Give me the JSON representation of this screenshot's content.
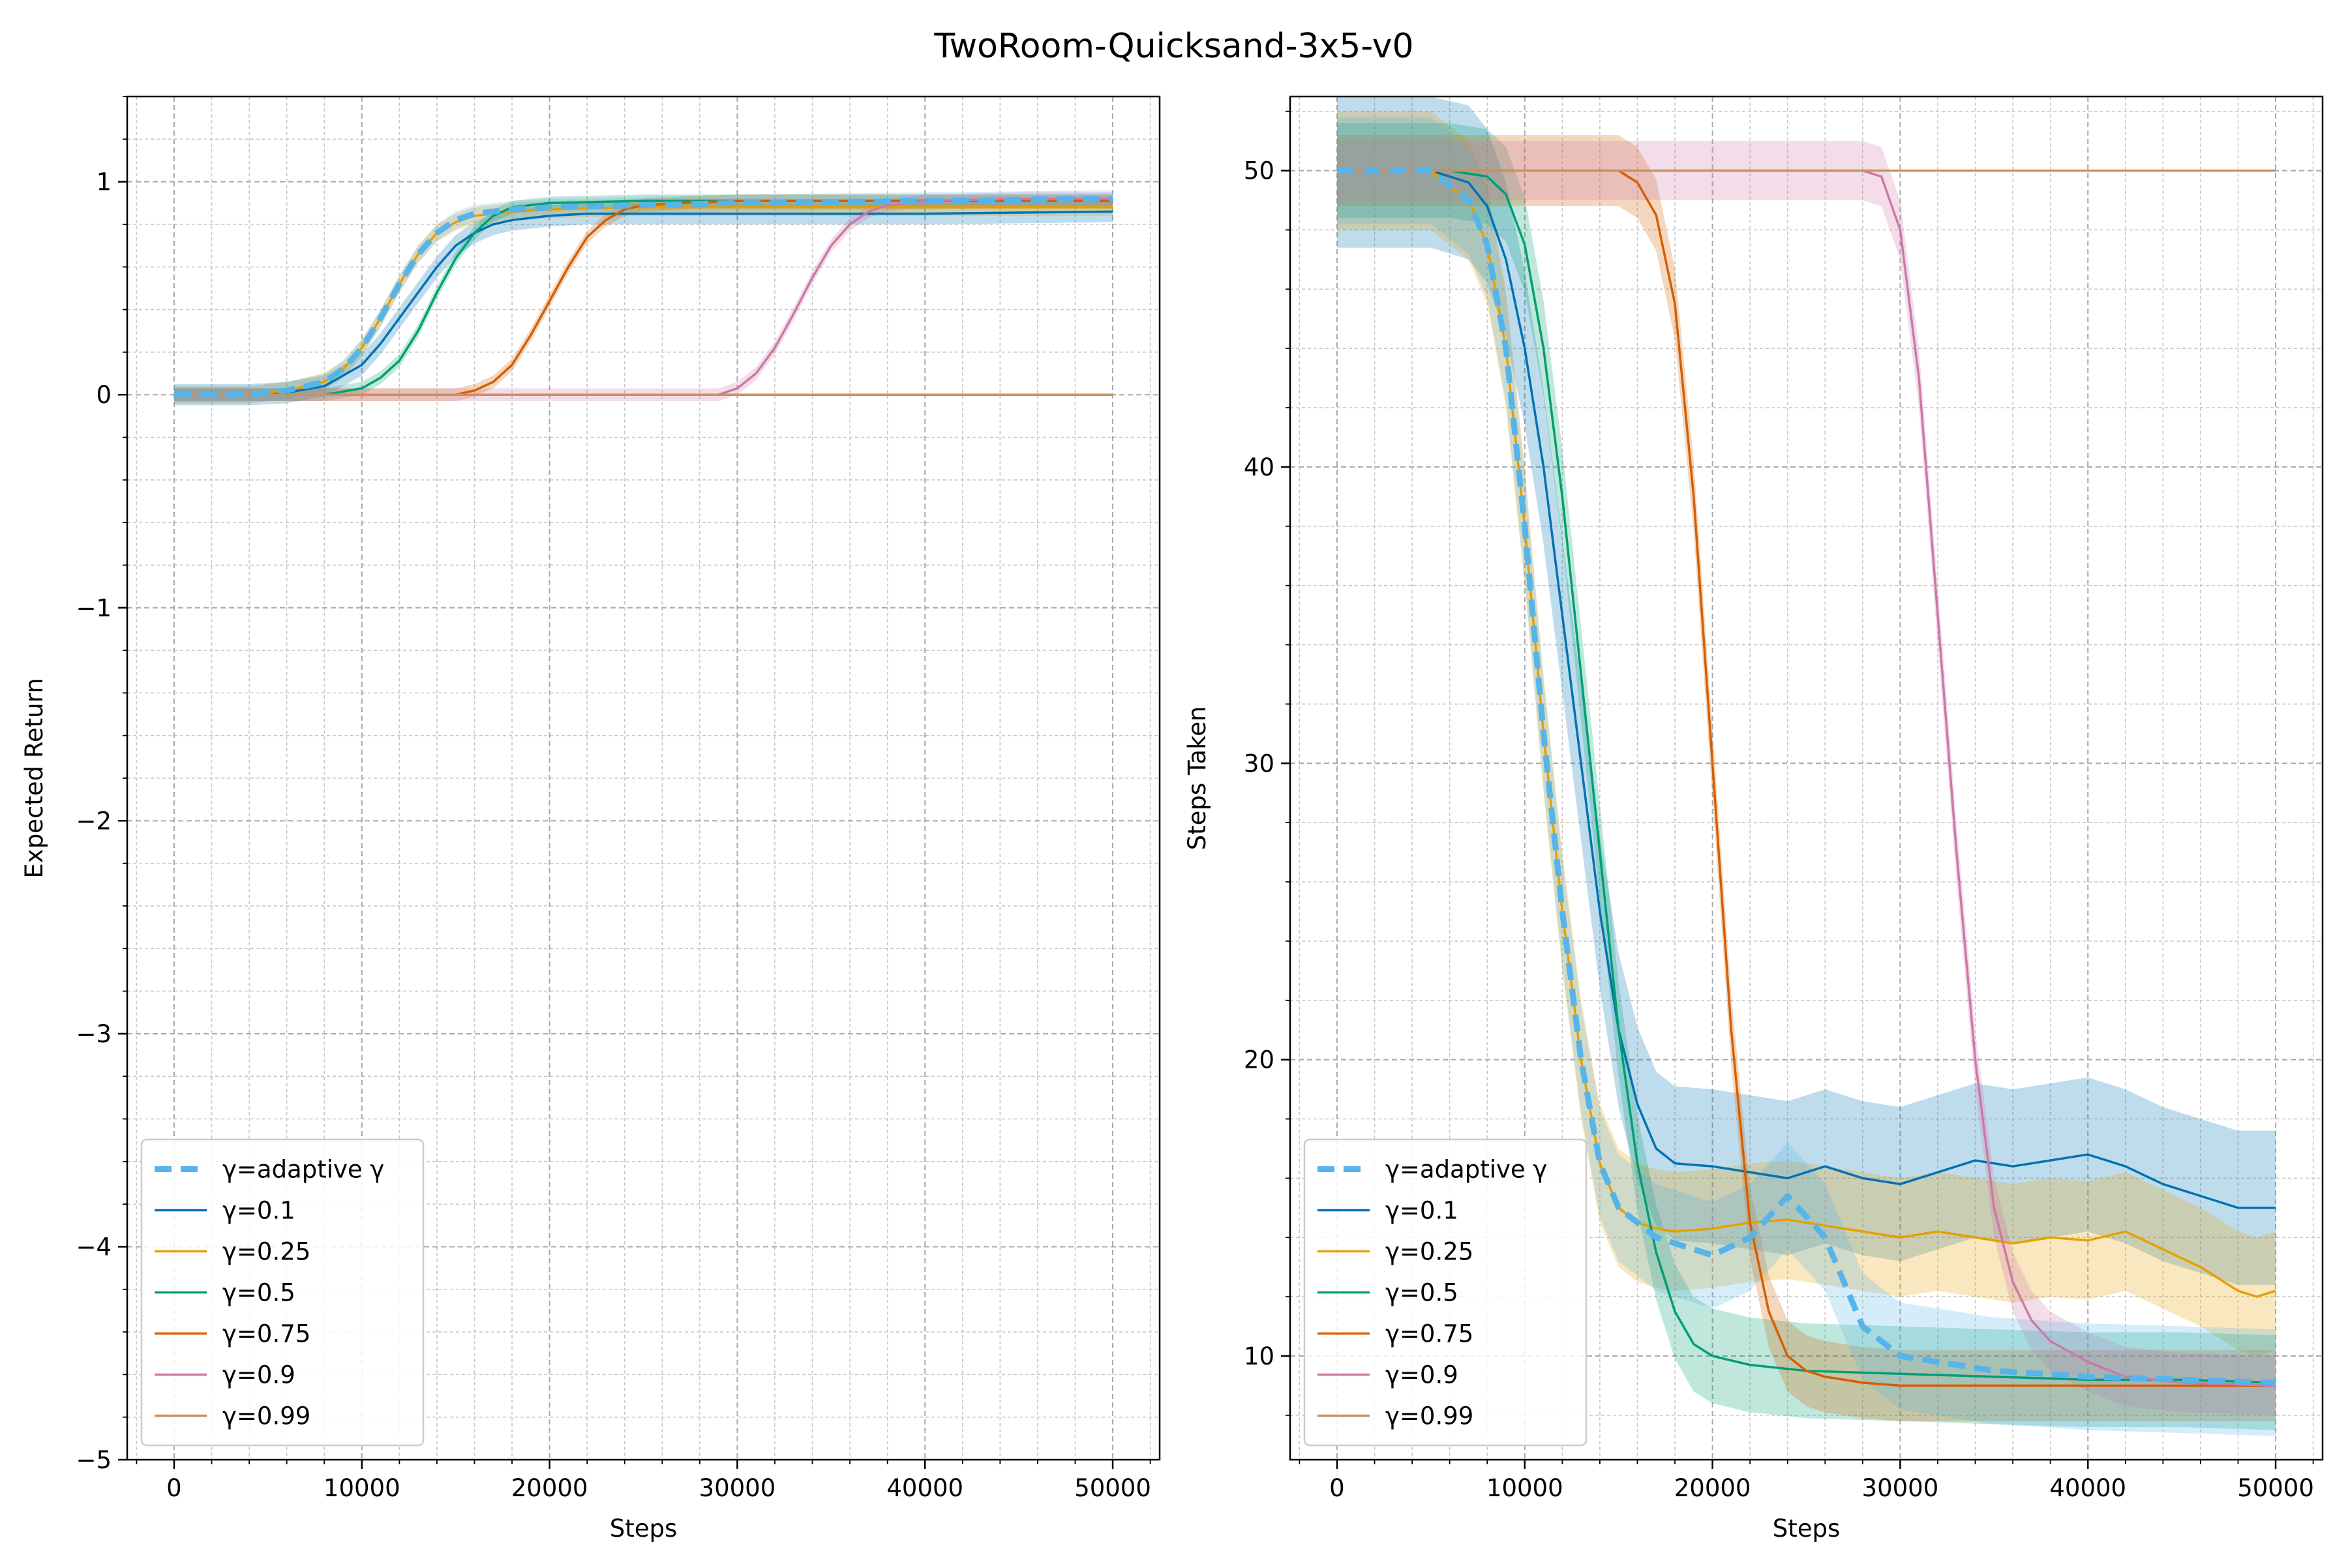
{
  "figure": {
    "title": "TwoRoom-Quicksand-3x5-v0"
  },
  "colors": {
    "adaptive": "#56B4E9",
    "g01": "#0072B2",
    "g025": "#E69F00",
    "g05": "#009E73",
    "g075": "#D55E00",
    "g09": "#CC79A7",
    "g099": "#CA9161"
  },
  "chart_data": [
    {
      "type": "line",
      "xlabel": "Steps",
      "ylabel": "Expected Return",
      "xlim": [
        -2500,
        52500
      ],
      "ylim": [
        -5,
        1.4
      ],
      "xticks": [
        0,
        10000,
        20000,
        30000,
        40000,
        50000
      ],
      "yticks": [
        -5,
        -4,
        -3,
        -2,
        -1,
        0,
        1
      ],
      "grid": true,
      "legend_position": "lower-left",
      "series": [
        {
          "name": "γ=adaptive γ",
          "key": "adaptive",
          "dashed": true,
          "x": [
            0,
            4000,
            6000,
            8000,
            9000,
            10000,
            11000,
            12000,
            13000,
            14000,
            15000,
            16000,
            18000,
            20000,
            25000,
            30000,
            40000,
            50000
          ],
          "y": [
            0,
            0,
            0.02,
            0.06,
            0.12,
            0.22,
            0.36,
            0.52,
            0.66,
            0.76,
            0.82,
            0.85,
            0.87,
            0.88,
            0.89,
            0.9,
            0.91,
            0.92
          ],
          "band": 0.04
        },
        {
          "name": "γ=0.1",
          "key": "g01",
          "dashed": false,
          "x": [
            0,
            4000,
            6000,
            8000,
            10000,
            11000,
            12000,
            13000,
            14000,
            15000,
            16000,
            17000,
            18000,
            20000,
            22000,
            25000,
            30000,
            40000,
            50000
          ],
          "y": [
            0,
            0,
            0.01,
            0.04,
            0.14,
            0.24,
            0.36,
            0.48,
            0.6,
            0.7,
            0.76,
            0.8,
            0.82,
            0.84,
            0.85,
            0.85,
            0.85,
            0.85,
            0.86
          ],
          "band": 0.05
        },
        {
          "name": "γ=0.25",
          "key": "g025",
          "dashed": false,
          "x": [
            0,
            4000,
            6000,
            8000,
            9000,
            10000,
            11000,
            12000,
            13000,
            14000,
            15000,
            16000,
            18000,
            20000,
            25000,
            30000,
            40000,
            50000
          ],
          "y": [
            0,
            0,
            0.02,
            0.06,
            0.12,
            0.22,
            0.36,
            0.52,
            0.66,
            0.76,
            0.81,
            0.84,
            0.86,
            0.87,
            0.88,
            0.88,
            0.88,
            0.88
          ],
          "band": 0.04
        },
        {
          "name": "γ=0.5",
          "key": "g05",
          "dashed": false,
          "x": [
            0,
            8000,
            10000,
            11000,
            12000,
            13000,
            14000,
            15000,
            16000,
            17000,
            18000,
            20000,
            25000,
            30000,
            40000,
            50000
          ],
          "y": [
            0,
            0,
            0.03,
            0.08,
            0.16,
            0.3,
            0.48,
            0.64,
            0.76,
            0.84,
            0.88,
            0.9,
            0.91,
            0.91,
            0.91,
            0.91
          ],
          "band": 0.03
        },
        {
          "name": "γ=0.75",
          "key": "g075",
          "dashed": false,
          "x": [
            0,
            15000,
            16000,
            17000,
            18000,
            19000,
            20000,
            21000,
            22000,
            23000,
            24000,
            25000,
            27000,
            30000,
            40000,
            50000
          ],
          "y": [
            0,
            0,
            0.02,
            0.06,
            0.14,
            0.28,
            0.44,
            0.6,
            0.74,
            0.82,
            0.87,
            0.89,
            0.9,
            0.91,
            0.91,
            0.91
          ],
          "band": 0.03
        },
        {
          "name": "γ=0.9",
          "key": "g09",
          "dashed": false,
          "x": [
            0,
            29000,
            30000,
            31000,
            32000,
            33000,
            34000,
            35000,
            36000,
            37000,
            38000,
            40000,
            45000,
            50000
          ],
          "y": [
            0,
            0,
            0.03,
            0.1,
            0.22,
            0.38,
            0.55,
            0.7,
            0.8,
            0.86,
            0.89,
            0.91,
            0.92,
            0.92
          ],
          "band": 0.03
        },
        {
          "name": "γ=0.99",
          "key": "g099",
          "dashed": false,
          "x": [
            0,
            50000
          ],
          "y": [
            0,
            0
          ],
          "band": 0
        }
      ]
    },
    {
      "type": "line",
      "xlabel": "Steps",
      "ylabel": "Steps Taken",
      "xlim": [
        -2500,
        52500
      ],
      "ylim": [
        6.5,
        52.5
      ],
      "xticks": [
        0,
        10000,
        20000,
        30000,
        40000,
        50000
      ],
      "yticks": [
        10,
        20,
        30,
        40,
        50
      ],
      "grid": true,
      "legend_position": "lower-left",
      "series": [
        {
          "name": "γ=adaptive γ",
          "key": "adaptive",
          "dashed": true,
          "x": [
            0,
            5000,
            7000,
            8000,
            9000,
            10000,
            11000,
            12000,
            13000,
            14000,
            15000,
            16000,
            17000,
            18000,
            20000,
            22000,
            24000,
            26000,
            28000,
            30000,
            32000,
            35000,
            40000,
            45000,
            50000
          ],
          "y": [
            50,
            50,
            49,
            47.5,
            44,
            38,
            31,
            25,
            20,
            16.5,
            15,
            14.5,
            14,
            13.8,
            13.4,
            14,
            15.4,
            14,
            11,
            10,
            9.8,
            9.5,
            9.3,
            9.2,
            9.1
          ],
          "band": 1.8
        },
        {
          "name": "γ=0.1",
          "key": "g01",
          "dashed": false,
          "x": [
            0,
            5000,
            7000,
            8000,
            9000,
            10000,
            11000,
            12000,
            13000,
            14000,
            15000,
            16000,
            17000,
            18000,
            20000,
            22000,
            24000,
            26000,
            28000,
            30000,
            32000,
            34000,
            36000,
            38000,
            40000,
            42000,
            44000,
            46000,
            48000,
            50000
          ],
          "y": [
            50,
            50,
            49.6,
            48.8,
            47,
            44,
            40,
            35,
            30,
            25,
            21,
            18.5,
            17,
            16.5,
            16.4,
            16.2,
            16,
            16.4,
            16,
            15.8,
            16.2,
            16.6,
            16.4,
            16.6,
            16.8,
            16.4,
            15.8,
            15.4,
            15,
            15
          ],
          "band": 2.6
        },
        {
          "name": "γ=0.25",
          "key": "g025",
          "dashed": false,
          "x": [
            0,
            5000,
            7000,
            8000,
            9000,
            10000,
            11000,
            12000,
            13000,
            14000,
            15000,
            16000,
            17000,
            18000,
            20000,
            22000,
            24000,
            26000,
            28000,
            30000,
            32000,
            34000,
            36000,
            38000,
            40000,
            42000,
            44000,
            46000,
            48000,
            49000,
            50000
          ],
          "y": [
            50,
            50,
            49,
            47.5,
            44,
            38,
            31,
            25,
            20,
            16.5,
            15,
            14.5,
            14.3,
            14.2,
            14.3,
            14.5,
            14.6,
            14.4,
            14.2,
            14.0,
            14.2,
            14.0,
            13.8,
            14.0,
            13.9,
            14.2,
            13.6,
            13.0,
            12.2,
            12.0,
            12.2
          ],
          "band": 2
        },
        {
          "name": "γ=0.5",
          "key": "g05",
          "dashed": false,
          "x": [
            0,
            6000,
            8000,
            9000,
            10000,
            11000,
            12000,
            13000,
            14000,
            15000,
            16000,
            17000,
            18000,
            19000,
            20000,
            22000,
            25000,
            30000,
            35000,
            40000,
            45000,
            50000
          ],
          "y": [
            50,
            50,
            49.8,
            49.2,
            47.5,
            44,
            39,
            33,
            27,
            21,
            16.5,
            13.5,
            11.5,
            10.4,
            10,
            9.7,
            9.5,
            9.4,
            9.3,
            9.2,
            9.2,
            9.1
          ],
          "band": 1.6
        },
        {
          "name": "γ=0.75",
          "key": "g075",
          "dashed": false,
          "x": [
            0,
            14000,
            15000,
            16000,
            17000,
            18000,
            19000,
            20000,
            21000,
            22000,
            23000,
            24000,
            25000,
            26000,
            28000,
            30000,
            40000,
            50000
          ],
          "y": [
            50,
            50,
            50,
            49.6,
            48.5,
            45.5,
            39,
            30,
            21,
            14.5,
            11.5,
            10,
            9.5,
            9.3,
            9.1,
            9.0,
            9.0,
            9.0
          ],
          "band": 1.2
        },
        {
          "name": "γ=0.9",
          "key": "g09",
          "dashed": false,
          "x": [
            0,
            28000,
            29000,
            30000,
            31000,
            32000,
            33000,
            34000,
            35000,
            36000,
            37000,
            38000,
            40000,
            42000,
            45000,
            50000
          ],
          "y": [
            50,
            50,
            49.8,
            48,
            43,
            35,
            27,
            20,
            15,
            12.5,
            11.2,
            10.5,
            9.8,
            9.3,
            9.1,
            9.0
          ],
          "band": 1.0
        },
        {
          "name": "γ=0.99",
          "key": "g099",
          "dashed": false,
          "x": [
            0,
            50000
          ],
          "y": [
            50,
            50
          ],
          "band": 0
        }
      ]
    }
  ]
}
